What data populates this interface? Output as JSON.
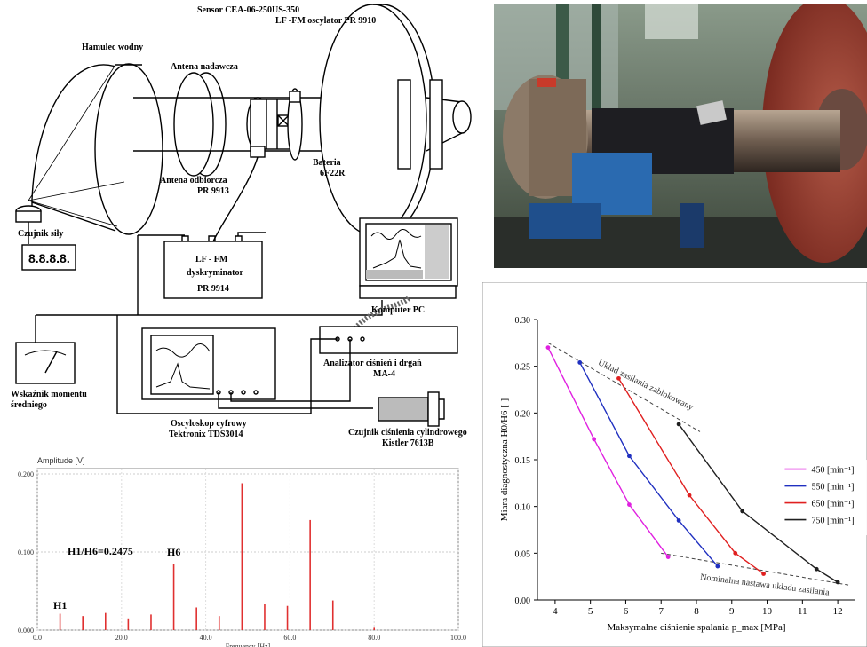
{
  "diagram": {
    "labels": {
      "sensor": "Sensor CEA-06-250US-350",
      "oscillator": "LF -FM oscylator  PR 9910",
      "brake": "Hamulec wodny",
      "tx_antenna": "Antena nadawcza",
      "rx_antenna_1": "Antena odbiorcza",
      "rx_antenna_2": "PR 9913",
      "battery_1": "Bateria",
      "battery_2": "6F22R",
      "force_sensor": "Czujnik siły",
      "display_digits": "8.8.8.8.",
      "disc_1": "LF - FM",
      "disc_2": "dyskryminator",
      "disc_3": "PR 9914",
      "pc": "Komputer  PC",
      "analyzer_1": "Analizator ciśnień i drgań",
      "analyzer_2": "MA-4",
      "meter_1": "Wskaźnik momentu",
      "meter_2": "średniego",
      "scope_1": "Oscyloskop cyfrowy",
      "scope_2": "Tektronix TDS3014",
      "cyl_1": "Czujnik ciśnienia cylindrowego",
      "cyl_2": "Kistler 7613B"
    }
  },
  "spectrum": {
    "ylabel": "Amplitude [V]",
    "xlabel": "Frequency [Hz]",
    "ratio_label": "H1/H6=0.2475",
    "h1_label": "H1",
    "h6_label": "H6",
    "yticks": [
      "0.000",
      "0.100",
      "0.200"
    ],
    "xticks": [
      "0.0",
      "20.0",
      "40.0",
      "60.0",
      "80.0",
      "100.0"
    ]
  },
  "chart_data": {
    "type": "line",
    "title": "",
    "xlabel": "Maksymalne ciśnienie spalania p_max [MPa]",
    "ylabel": "Miara diagnostyczna H0/H6 [-]",
    "xlim": [
      3.5,
      12.5
    ],
    "ylim": [
      0,
      0.3
    ],
    "xticks": [
      "4",
      "5",
      "6",
      "7",
      "8",
      "9",
      "10",
      "11",
      "12"
    ],
    "yticks": [
      "0.00",
      "0.05",
      "0.10",
      "0.15",
      "0.20",
      "0.25",
      "0.30"
    ],
    "series": [
      {
        "name": "450 [min⁻¹]",
        "color": "#e020e0",
        "x": [
          3.8,
          5.1,
          6.1,
          7.2
        ],
        "y": [
          0.27,
          0.172,
          0.102,
          0.046
        ]
      },
      {
        "name": "550 [min⁻¹]",
        "color": "#2030c0",
        "x": [
          4.7,
          6.1,
          7.5,
          8.6
        ],
        "y": [
          0.254,
          0.154,
          0.085,
          0.036
        ]
      },
      {
        "name": "650 [min⁻¹]",
        "color": "#e02020",
        "x": [
          5.8,
          7.8,
          9.1,
          9.9
        ],
        "y": [
          0.237,
          0.112,
          0.05,
          0.028
        ]
      },
      {
        "name": "750 [min⁻¹]",
        "color": "#202020",
        "x": [
          7.5,
          9.3,
          11.4,
          12.0
        ],
        "y": [
          0.188,
          0.095,
          0.033,
          0.019
        ]
      }
    ],
    "annotations": [
      "Układ zasilania zablokowany",
      "Nominalna nastawa układu zasilania"
    ],
    "legend_position": "right",
    "grid": false
  },
  "spectrum_data": {
    "type": "bar",
    "xlim": [
      0,
      100
    ],
    "ylim": [
      0,
      0.2
    ],
    "x": [
      5.4,
      10.8,
      16.2,
      21.6,
      27,
      32.4,
      37.8,
      43.2,
      48.6,
      54,
      59.4,
      64.8,
      70.2,
      80
    ],
    "values": [
      0.021,
      0.018,
      0.022,
      0.015,
      0.02,
      0.085,
      0.029,
      0.018,
      0.188,
      0.034,
      0.031,
      0.141,
      0.038,
      0.003
    ],
    "color": "#e03030"
  },
  "photo": {
    "alt_name": "test-rig-photo"
  }
}
